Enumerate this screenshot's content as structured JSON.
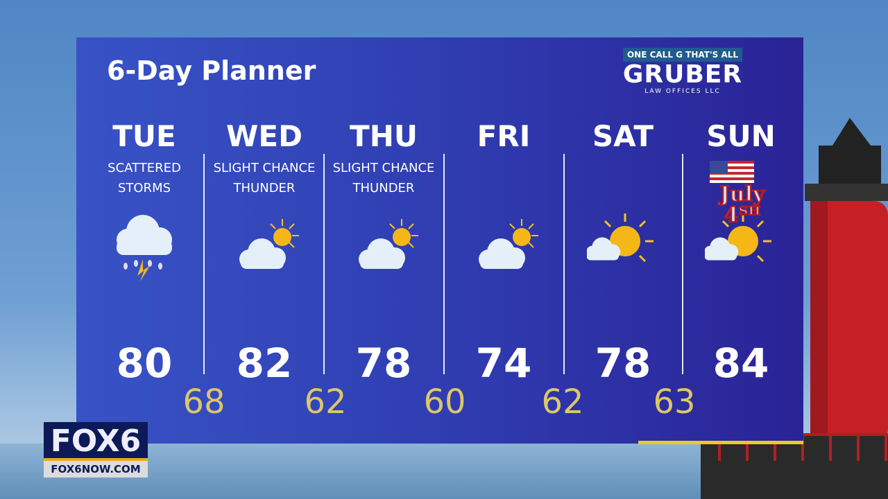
{
  "title": "6-Day Planner",
  "sponsor": {
    "tagline": "ONE CALL G THAT'S ALL",
    "name": "GRUBER",
    "sub": "LAW OFFICES LLC"
  },
  "days": [
    {
      "day": "TUE",
      "cond1": "SCATTERED",
      "cond2": "STORMS",
      "icon": "thunderstorm-icon",
      "high": "80"
    },
    {
      "day": "WED",
      "cond1": "SLIGHT CHANCE",
      "cond2": "THUNDER",
      "icon": "partly-cloudy-icon",
      "high": "82"
    },
    {
      "day": "THU",
      "cond1": "SLIGHT CHANCE",
      "cond2": "THUNDER",
      "icon": "partly-cloudy-icon",
      "high": "78"
    },
    {
      "day": "FRI",
      "cond1": "",
      "cond2": "",
      "icon": "partly-cloudy-icon",
      "high": "74"
    },
    {
      "day": "SAT",
      "cond1": "",
      "cond2": "",
      "icon": "mostly-sunny-icon",
      "high": "78"
    },
    {
      "day": "SUN",
      "cond1": "",
      "cond2": "",
      "icon": "mostly-sunny-icon",
      "high": "84",
      "badge": "July 4th"
    }
  ],
  "lows": [
    "68",
    "62",
    "60",
    "62",
    "63"
  ],
  "station": {
    "logo": "FOX6",
    "url": "FOX6NOW.COM"
  },
  "colors": {
    "high": "#ffffff",
    "low": "#dcc66a",
    "panel": "#3040b4"
  }
}
